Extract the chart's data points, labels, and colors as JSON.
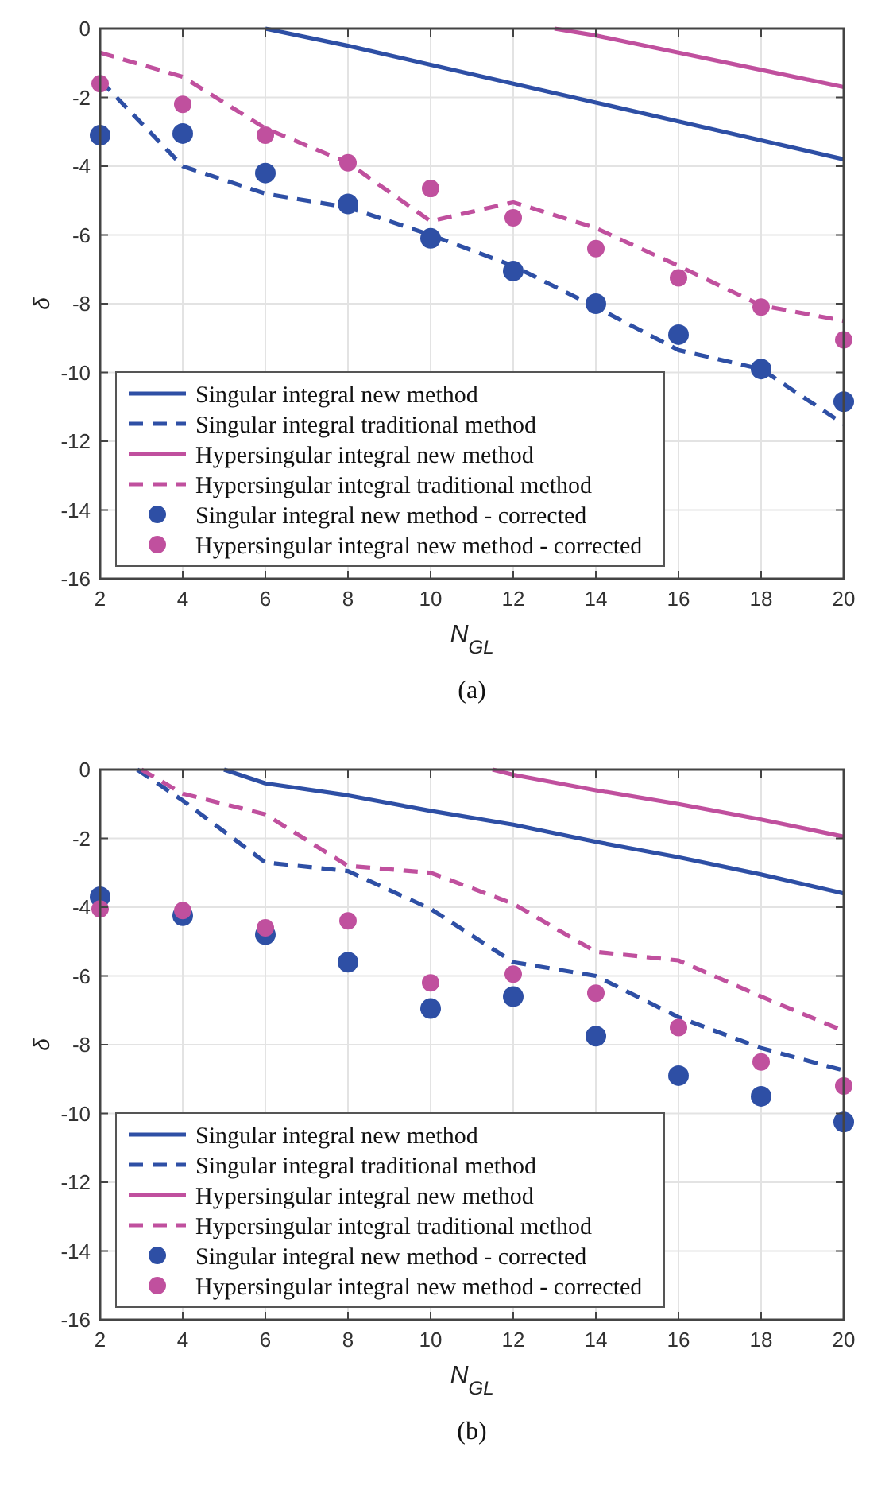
{
  "chart_data": [
    {
      "type": "line",
      "xlabel": "N$_{GL}$",
      "ylabel": "δ",
      "xlim": [
        2,
        20
      ],
      "ylim": [
        -16,
        0
      ],
      "xticks": [
        2,
        4,
        6,
        8,
        10,
        12,
        14,
        16,
        18,
        20
      ],
      "yticks": [
        -16,
        -14,
        -12,
        -10,
        -8,
        -6,
        -4,
        -2,
        0
      ],
      "grid": true,
      "legend": "bottom left",
      "annotations": [
        "(a)"
      ],
      "series": [
        {
          "name": "Singular integral new method",
          "color": "#2e4fa5",
          "line_style": "solid",
          "x": [
            6,
            8,
            10,
            12,
            14,
            16,
            18,
            20
          ],
          "values": [
            0,
            -0.5,
            -1.05,
            -1.6,
            -2.15,
            -2.7,
            -3.25,
            -3.8
          ]
        },
        {
          "name": "Singular integral traditional method",
          "color": "#2e4fa5",
          "line_style": "dashed",
          "x": [
            2,
            4,
            6,
            8,
            10,
            12,
            14,
            16,
            18,
            20
          ],
          "values": [
            -1.5,
            -4.0,
            -4.8,
            -5.2,
            -6.0,
            -6.9,
            -8.1,
            -9.35,
            -9.9,
            -11.5
          ]
        },
        {
          "name": "Hypersingular integral new method",
          "color": "#c0509e",
          "line_style": "solid",
          "x": [
            13,
            14,
            16,
            18,
            20
          ],
          "values": [
            0,
            -0.2,
            -0.7,
            -1.2,
            -1.7
          ]
        },
        {
          "name": "Hypersingular integral traditional method",
          "color": "#c0509e",
          "line_style": "dashed",
          "x": [
            2,
            4,
            6,
            8,
            10,
            12,
            14,
            16,
            18,
            20
          ],
          "values": [
            -0.7,
            -1.4,
            -2.9,
            -3.9,
            -5.6,
            -5.05,
            -5.8,
            -6.9,
            -8.05,
            -8.5
          ]
        },
        {
          "name": "Singular integral new method - corrected",
          "color": "#2e4fa5",
          "type": "scatter",
          "marker": "circle",
          "x": [
            2,
            4,
            6,
            8,
            10,
            12,
            14,
            16,
            18,
            20
          ],
          "values": [
            -3.1,
            -3.05,
            -4.2,
            -5.1,
            -6.1,
            -7.05,
            -8.0,
            -8.9,
            -9.9,
            -10.85
          ]
        },
        {
          "name": "Hypersingular integral new method - corrected",
          "color": "#c0509e",
          "type": "scatter",
          "marker": "circle",
          "x": [
            2,
            4,
            6,
            8,
            10,
            12,
            14,
            16,
            18,
            20
          ],
          "values": [
            -1.6,
            -2.2,
            -3.1,
            -3.9,
            -4.65,
            -5.5,
            -6.4,
            -7.25,
            -8.1,
            -9.05
          ]
        }
      ]
    },
    {
      "type": "line",
      "xlabel": "N$_{GL}$",
      "ylabel": "δ",
      "xlim": [
        2,
        20
      ],
      "ylim": [
        -16,
        0
      ],
      "xticks": [
        2,
        4,
        6,
        8,
        10,
        12,
        14,
        16,
        18,
        20
      ],
      "yticks": [
        -16,
        -14,
        -12,
        -10,
        -8,
        -6,
        -4,
        -2,
        0
      ],
      "grid": true,
      "legend": "bottom left",
      "annotations": [
        "(b)"
      ],
      "series": [
        {
          "name": "Singular integral new method",
          "color": "#2e4fa5",
          "line_style": "solid",
          "x": [
            5,
            6,
            8,
            10,
            12,
            14,
            16,
            18,
            20
          ],
          "values": [
            0,
            -0.4,
            -0.75,
            -1.2,
            -1.6,
            -2.1,
            -2.55,
            -3.05,
            -3.6
          ]
        },
        {
          "name": "Singular integral traditional method",
          "color": "#2e4fa5",
          "line_style": "dashed",
          "x": [
            2.9,
            4,
            6,
            8,
            10,
            12,
            14,
            16,
            18,
            20
          ],
          "values": [
            0,
            -0.9,
            -2.7,
            -2.95,
            -4.05,
            -5.6,
            -6.0,
            -7.2,
            -8.1,
            -8.75
          ]
        },
        {
          "name": "Hypersingular integral new method",
          "color": "#c0509e",
          "line_style": "solid",
          "x": [
            11.5,
            12,
            14,
            16,
            18,
            20
          ],
          "values": [
            0,
            -0.15,
            -0.6,
            -1.0,
            -1.45,
            -1.95
          ]
        },
        {
          "name": "Hypersingular integral traditional method",
          "color": "#c0509e",
          "line_style": "dashed",
          "x": [
            3,
            4,
            6,
            8,
            10,
            12,
            14,
            16,
            18,
            20
          ],
          "values": [
            0,
            -0.7,
            -1.3,
            -2.8,
            -3.0,
            -3.9,
            -5.3,
            -5.55,
            -6.6,
            -7.6
          ]
        },
        {
          "name": "Singular integral new method - corrected",
          "color": "#2e4fa5",
          "type": "scatter",
          "marker": "circle",
          "x": [
            2,
            4,
            6,
            8,
            10,
            12,
            14,
            16,
            18,
            20
          ],
          "values": [
            -3.7,
            -4.25,
            -4.8,
            -5.6,
            -6.95,
            -6.6,
            -7.75,
            -8.9,
            -9.5,
            -10.25
          ]
        },
        {
          "name": "Hypersingular integral new method - corrected",
          "color": "#c0509e",
          "type": "scatter",
          "marker": "circle",
          "x": [
            2,
            4,
            6,
            8,
            10,
            12,
            14,
            16,
            18,
            20
          ],
          "values": [
            -4.05,
            -4.1,
            -4.6,
            -4.4,
            -6.2,
            -5.95,
            -6.5,
            -7.5,
            -8.5,
            -9.2
          ]
        }
      ]
    }
  ]
}
